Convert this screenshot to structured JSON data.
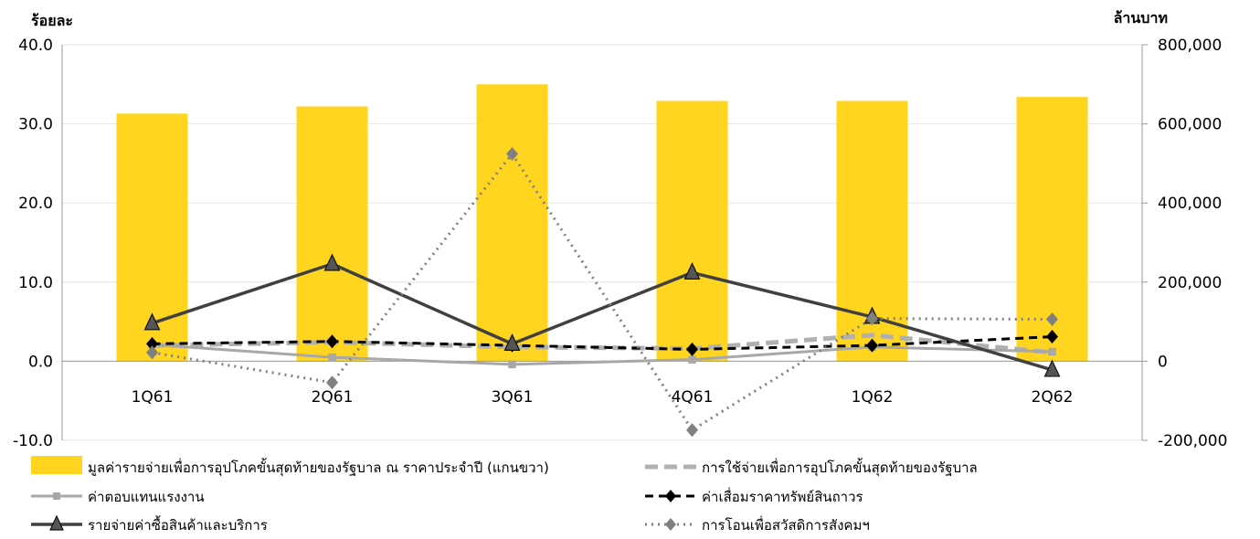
{
  "chart_data": {
    "type": "bar",
    "y_left_title": "ร้อยละ",
    "y_right_title": "ล้านบาท",
    "ylim_left": [
      -10,
      40
    ],
    "ylim_right": [
      -200000,
      800000
    ],
    "yticks_left": [
      "40.0",
      "30.0",
      "20.0",
      "10.0",
      "0.0",
      "-10.0"
    ],
    "yticks_left_values": [
      40,
      30,
      20,
      10,
      0,
      -10
    ],
    "yticks_right": [
      "800,000",
      "600,000",
      "400,000",
      "200,000",
      "0",
      "-200,000"
    ],
    "yticks_right_values": [
      800000,
      600000,
      400000,
      200000,
      0,
      -200000
    ],
    "categories": [
      "1Q61",
      "2Q61",
      "3Q61",
      "4Q61",
      "1Q62",
      "2Q62"
    ],
    "bar_series": {
      "name": "มูลค่ารายจ่ายเพื่อการอุปโภคขั้นสุดท้ายของรัฐบาล  ณ ราคาประจำปี (แกนขวา)",
      "axis": "right",
      "color": "#FFD520",
      "values": [
        626000,
        644000,
        700000,
        658000,
        658000,
        668000
      ]
    },
    "line_series": [
      {
        "name": "การใช้จ่ายเพื่อการอุปโภคขั้นสุดท้ายของรัฐบาล",
        "color": "#B0B0B0",
        "style": "dashed-thick",
        "marker": "none",
        "values": [
          2.0,
          2.4,
          1.8,
          1.6,
          3.3,
          1.1
        ]
      },
      {
        "name": "ค่าตอบแทนแรงงาน",
        "color": "#A8A8A8",
        "style": "solid",
        "marker": "square",
        "values": [
          2.1,
          0.5,
          -0.4,
          0.2,
          1.8,
          1.2
        ]
      },
      {
        "name": "ค่าเสื่อมราคาทรัพย์สินถาวร",
        "color": "#000000",
        "style": "dashed",
        "marker": "diamond",
        "values": [
          2.2,
          2.5,
          2.0,
          1.5,
          2.0,
          3.1
        ]
      },
      {
        "name": "รายจ่ายค่าซื้อสินค้าและบริการ",
        "color": "#404040",
        "style": "solid-thick",
        "marker": "triangle",
        "values": [
          4.8,
          12.3,
          2.2,
          11.2,
          5.6,
          -1.1
        ]
      },
      {
        "name": "การโอนเพื่อสวัสดิการสังคมฯ",
        "color": "#808080",
        "style": "dotted",
        "marker": "diamond",
        "values": [
          1.1,
          -2.7,
          26.2,
          -8.7,
          5.4,
          5.3
        ]
      }
    ],
    "grid": "horizontal",
    "legend_position": "bottom"
  }
}
